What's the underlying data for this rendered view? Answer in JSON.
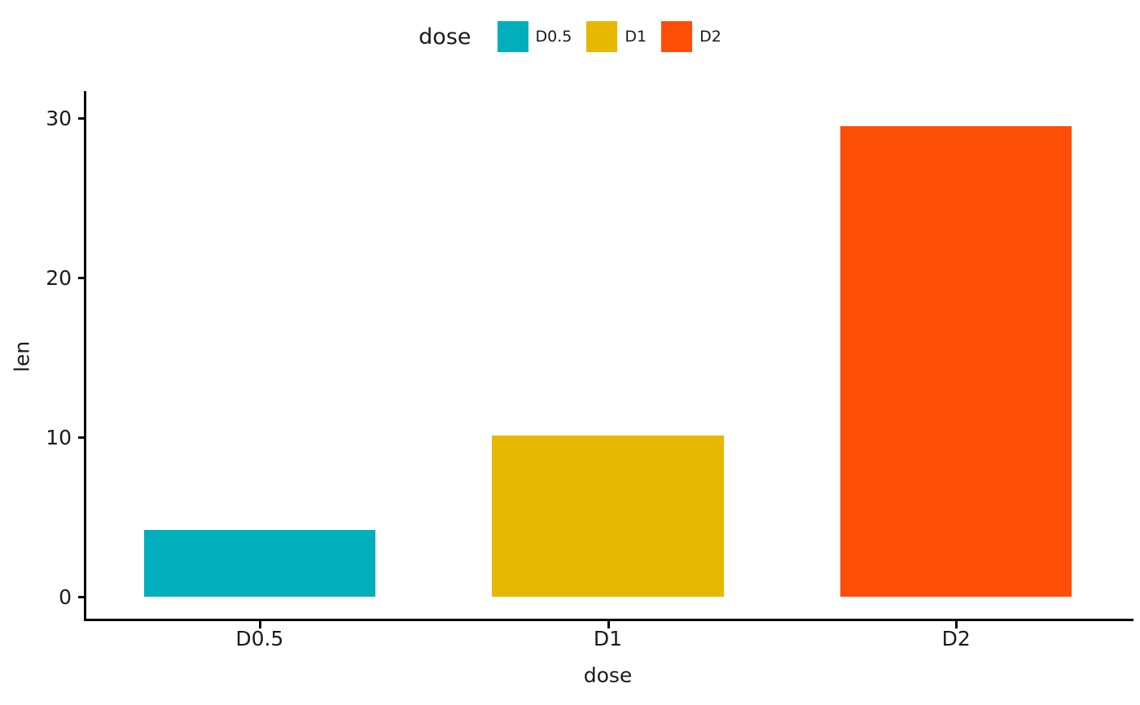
{
  "chart_data": {
    "type": "bar",
    "categories": [
      "D0.5",
      "D1",
      "D2"
    ],
    "values": [
      4.2,
      10.1,
      29.5
    ],
    "bar_colors": [
      "#00AFBB",
      "#E7B800",
      "#FC4E07"
    ],
    "title": "",
    "xlabel": "dose",
    "ylabel": "len",
    "ylim": [
      0,
      30
    ],
    "yticks": [
      0,
      10,
      20,
      30
    ],
    "grid": false,
    "legend": {
      "position": "top",
      "title": "dose",
      "entries": [
        {
          "label": "D0.5",
          "color": "#00AFBB"
        },
        {
          "label": "D1",
          "color": "#E7B800"
        },
        {
          "label": "D2",
          "color": "#FC4E07"
        }
      ]
    }
  }
}
